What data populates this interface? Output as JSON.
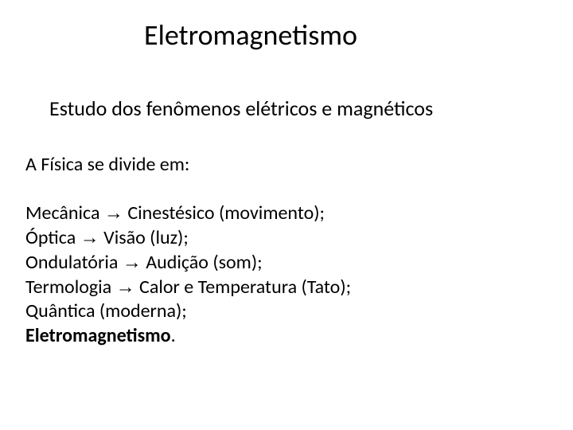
{
  "title": "Eletromagnetismo",
  "subtitle": "Estudo dos fenômenos elétricos e magnéticos",
  "intro": "A Física se divide em:",
  "arrow": "→",
  "items": [
    {
      "name": "Mecânica",
      "target": "Cinestésico (movimento);"
    },
    {
      "name": "Óptica",
      "target": "Visão (luz);"
    },
    {
      "name": "Ondulatória",
      "target": "Audição (som);"
    },
    {
      "name": "Termologia",
      "target": "Calor e Temperatura (Tato);"
    }
  ],
  "tail1": "Quântica (moderna);",
  "tail2_bold": "Eletromagnetismo",
  "tail2_punct": ".",
  "style": {
    "background_color": "#ffffff",
    "text_color": "#000000",
    "title_fontsize": 36,
    "subtitle_fontsize": 26,
    "body_fontsize": 24,
    "font_family": "Calibri"
  }
}
